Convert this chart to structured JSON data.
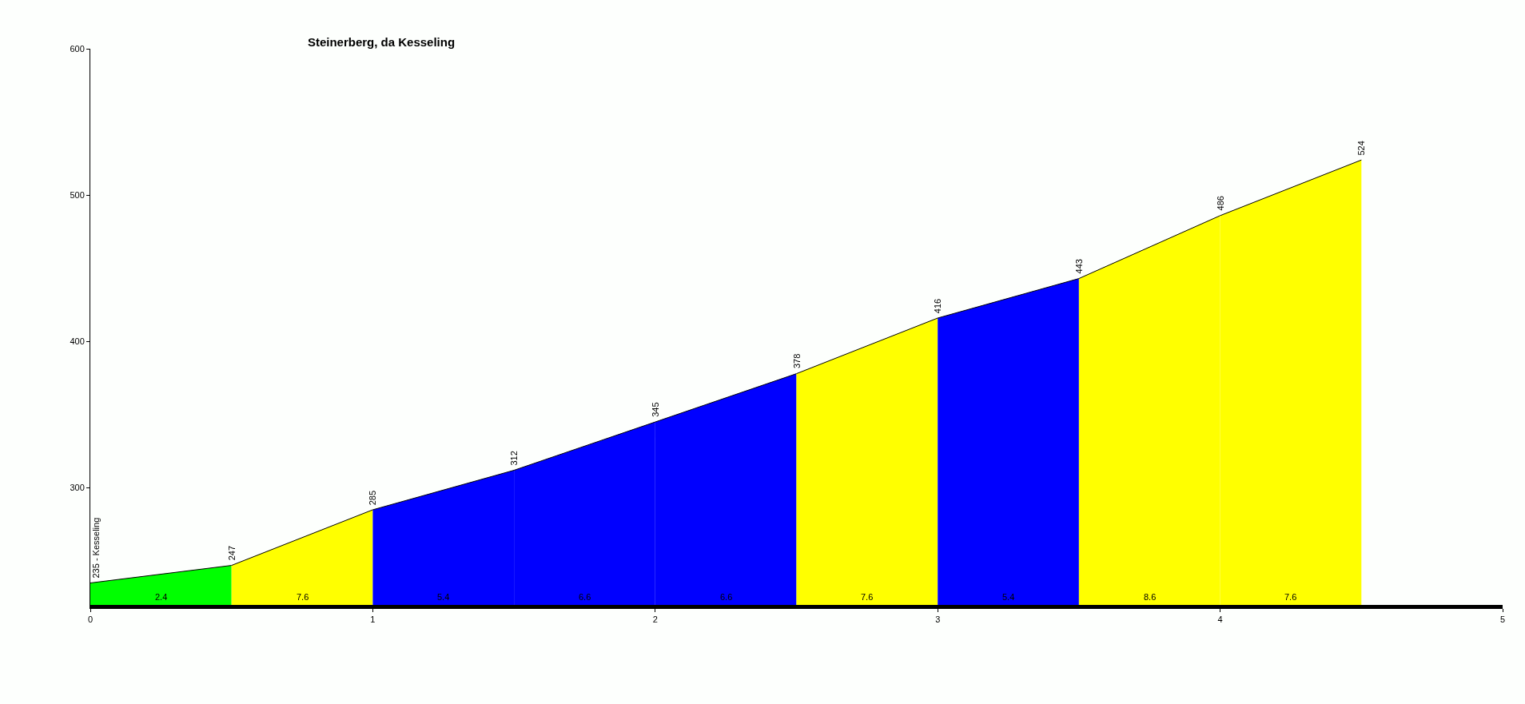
{
  "chart_data": {
    "type": "area",
    "title": "Steinerberg, da Kesseling",
    "xlim": [
      0,
      5
    ],
    "xticks": [
      0,
      1,
      2,
      3,
      4,
      5
    ],
    "ylim": [
      220,
      600
    ],
    "yticks": [
      300,
      400,
      500,
      600
    ],
    "series": [
      {
        "x": [
          0,
          0.5
        ],
        "values": [
          235,
          247
        ],
        "color": "#00ff00",
        "value_labels": [
          "235 - Kesseling",
          "247"
        ]
      },
      {
        "x": [
          0.5,
          1
        ],
        "values": [
          247,
          285
        ],
        "color": "#ffff00",
        "value_labels": [
          null,
          "285"
        ]
      },
      {
        "x": [
          1,
          1.5
        ],
        "values": [
          285,
          312
        ],
        "color": "#0000ff",
        "value_labels": [
          null,
          "312"
        ]
      },
      {
        "x": [
          1.5,
          2
        ],
        "values": [
          312,
          345
        ],
        "color": "#0000ff",
        "value_labels": [
          null,
          "345"
        ]
      },
      {
        "x": [
          2,
          2.5
        ],
        "values": [
          345,
          378
        ],
        "color": "#0000ff",
        "value_labels": [
          null,
          "378"
        ]
      },
      {
        "x": [
          2.5,
          3
        ],
        "values": [
          378,
          416
        ],
        "color": "#ffff00",
        "value_labels": [
          null,
          "416"
        ]
      },
      {
        "x": [
          3,
          3.5
        ],
        "values": [
          416,
          443
        ],
        "color": "#0000ff",
        "value_labels": [
          null,
          "443"
        ]
      },
      {
        "x": [
          3.5,
          4
        ],
        "values": [
          443,
          486
        ],
        "color": "#ffff00",
        "value_labels": [
          null,
          "486"
        ]
      },
      {
        "x": [
          4,
          4.5
        ],
        "values": [
          486,
          524
        ],
        "color": "#ffff00",
        "value_labels": [
          null,
          "524"
        ]
      }
    ],
    "annotations": [
      "2.4",
      "7.6",
      "5.4",
      "6.6",
      "6.6",
      "7.6",
      "5.4",
      "8.6",
      "7.6"
    ]
  }
}
